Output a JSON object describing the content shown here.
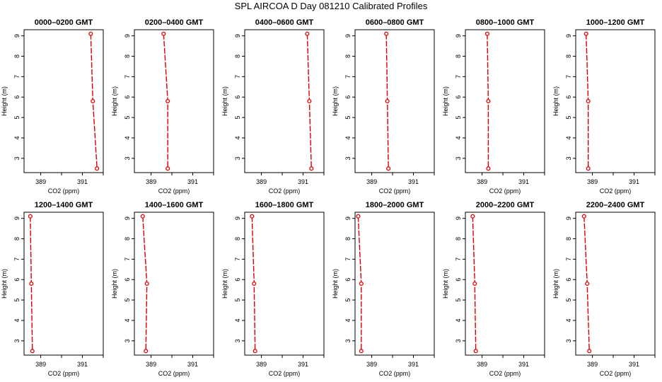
{
  "title": "SPL  AIRCOA D  Day 081210  Calibrated Profiles",
  "colors": {
    "line": "#dd0000",
    "axis": "#000000"
  },
  "chart_data": [
    {
      "type": "line",
      "title": "0000–0200 GMT",
      "xlabel": "CO2 (ppm)",
      "ylabel": "Height (m)",
      "xlim": [
        388.2,
        392.0
      ],
      "ylim": [
        2.3,
        9.3
      ],
      "xticks": [
        389,
        390,
        391,
        392
      ],
      "xticklabels": [
        "389",
        "",
        "391",
        ""
      ],
      "yticks": [
        3,
        4,
        5,
        6,
        7,
        8,
        9
      ],
      "x": [
        391.4,
        391.5,
        391.7
      ],
      "y": [
        9.1,
        5.8,
        2.5
      ]
    },
    {
      "type": "line",
      "title": "0200–0400 GMT",
      "xlabel": "CO2 (ppm)",
      "ylabel": "Height (m)",
      "xlim": [
        388.2,
        392.0
      ],
      "ylim": [
        2.3,
        9.3
      ],
      "xticks": [
        389,
        390,
        391,
        392
      ],
      "xticklabels": [
        "389",
        "",
        "391",
        ""
      ],
      "yticks": [
        3,
        4,
        5,
        6,
        7,
        8,
        9
      ],
      "x": [
        389.6,
        389.8,
        389.8
      ],
      "y": [
        9.1,
        5.8,
        2.5
      ]
    },
    {
      "type": "line",
      "title": "0400–0600 GMT",
      "xlabel": "CO2 (ppm)",
      "ylabel": "Height (m)",
      "xlim": [
        388.2,
        392.0
      ],
      "ylim": [
        2.3,
        9.3
      ],
      "xticks": [
        389,
        390,
        391,
        392
      ],
      "xticklabels": [
        "389",
        "",
        "391",
        ""
      ],
      "yticks": [
        3,
        4,
        5,
        6,
        7,
        8,
        9
      ],
      "x": [
        391.2,
        391.3,
        391.4
      ],
      "y": [
        9.1,
        5.8,
        2.5
      ]
    },
    {
      "type": "line",
      "title": "0600–0800 GMT",
      "xlabel": "CO2 (ppm)",
      "ylabel": "Height (m)",
      "xlim": [
        388.2,
        392.0
      ],
      "ylim": [
        2.3,
        9.3
      ],
      "xticks": [
        389,
        390,
        391,
        392
      ],
      "xticklabels": [
        "389",
        "",
        "391",
        ""
      ],
      "yticks": [
        3,
        4,
        5,
        6,
        7,
        8,
        9
      ],
      "x": [
        389.7,
        389.75,
        389.8
      ],
      "y": [
        9.1,
        5.8,
        2.5
      ]
    },
    {
      "type": "line",
      "title": "0800–1000 GMT",
      "xlabel": "CO2 (ppm)",
      "ylabel": "Height (m)",
      "xlim": [
        388.2,
        392.0
      ],
      "ylim": [
        2.3,
        9.3
      ],
      "xticks": [
        389,
        390,
        391,
        392
      ],
      "xticklabels": [
        "389",
        "",
        "391",
        ""
      ],
      "yticks": [
        3,
        4,
        5,
        6,
        7,
        8,
        9
      ],
      "x": [
        389.25,
        389.3,
        389.3
      ],
      "y": [
        9.1,
        5.8,
        2.5
      ]
    },
    {
      "type": "line",
      "title": "1000–1200 GMT",
      "xlabel": "CO2 (ppm)",
      "ylabel": "Height (m)",
      "xlim": [
        388.2,
        392.0
      ],
      "ylim": [
        2.3,
        9.3
      ],
      "xticks": [
        389,
        390,
        391,
        392
      ],
      "xticklabels": [
        "389",
        "",
        "391",
        ""
      ],
      "yticks": [
        3,
        4,
        5,
        6,
        7,
        8,
        9
      ],
      "x": [
        388.7,
        388.8,
        388.8
      ],
      "y": [
        9.1,
        5.8,
        2.5
      ]
    },
    {
      "type": "line",
      "title": "1200–1400 GMT",
      "xlabel": "CO2 (ppm)",
      "ylabel": "Height (m)",
      "xlim": [
        388.2,
        392.0
      ],
      "ylim": [
        2.3,
        9.3
      ],
      "xticks": [
        389,
        390,
        391,
        392
      ],
      "xticklabels": [
        "389",
        "",
        "391",
        ""
      ],
      "yticks": [
        3,
        4,
        5,
        6,
        7,
        8,
        9
      ],
      "x": [
        388.5,
        388.55,
        388.6
      ],
      "y": [
        9.1,
        5.8,
        2.5
      ]
    },
    {
      "type": "line",
      "title": "1400–1600 GMT",
      "xlabel": "CO2 (ppm)",
      "ylabel": "Height (m)",
      "xlim": [
        388.2,
        392.0
      ],
      "ylim": [
        2.3,
        9.3
      ],
      "xticks": [
        389,
        390,
        391,
        392
      ],
      "xticklabels": [
        "389",
        "",
        "391",
        ""
      ],
      "yticks": [
        3,
        4,
        5,
        6,
        7,
        8,
        9
      ],
      "x": [
        388.6,
        388.8,
        388.75
      ],
      "y": [
        9.1,
        5.8,
        2.5
      ]
    },
    {
      "type": "line",
      "title": "1600–1800 GMT",
      "xlabel": "CO2 (ppm)",
      "ylabel": "Height (m)",
      "xlim": [
        388.2,
        392.0
      ],
      "ylim": [
        2.3,
        9.3
      ],
      "xticks": [
        389,
        390,
        391,
        392
      ],
      "xticklabels": [
        "389",
        "",
        "391",
        ""
      ],
      "yticks": [
        3,
        4,
        5,
        6,
        7,
        8,
        9
      ],
      "x": [
        388.55,
        388.65,
        388.7
      ],
      "y": [
        9.1,
        5.8,
        2.5
      ]
    },
    {
      "type": "line",
      "title": "1800–2000 GMT",
      "xlabel": "CO2 (ppm)",
      "ylabel": "Height (m)",
      "xlim": [
        388.2,
        392.0
      ],
      "ylim": [
        2.3,
        9.3
      ],
      "xticks": [
        389,
        390,
        391,
        392
      ],
      "xticklabels": [
        "389",
        "",
        "391",
        ""
      ],
      "yticks": [
        3,
        4,
        5,
        6,
        7,
        8,
        9
      ],
      "x": [
        388.35,
        388.5,
        388.5
      ],
      "y": [
        9.1,
        5.8,
        2.5
      ]
    },
    {
      "type": "line",
      "title": "2000–2200 GMT",
      "xlabel": "CO2 (ppm)",
      "ylabel": "Height (m)",
      "xlim": [
        388.2,
        392.0
      ],
      "ylim": [
        2.3,
        9.3
      ],
      "xticks": [
        389,
        390,
        391,
        392
      ],
      "xticklabels": [
        "389",
        "",
        "391",
        ""
      ],
      "yticks": [
        3,
        4,
        5,
        6,
        7,
        8,
        9
      ],
      "x": [
        388.55,
        388.65,
        388.7
      ],
      "y": [
        9.1,
        5.8,
        2.5
      ]
    },
    {
      "type": "line",
      "title": "2200–2400 GMT",
      "xlabel": "CO2 (ppm)",
      "ylabel": "Height (m)",
      "xlim": [
        388.2,
        392.0
      ],
      "ylim": [
        2.3,
        9.3
      ],
      "xticks": [
        389,
        390,
        391,
        392
      ],
      "xticklabels": [
        "389",
        "",
        "391",
        ""
      ],
      "yticks": [
        3,
        4,
        5,
        6,
        7,
        8,
        9
      ],
      "x": [
        388.6,
        388.75,
        388.85
      ],
      "y": [
        9.1,
        5.8,
        2.5
      ]
    }
  ]
}
